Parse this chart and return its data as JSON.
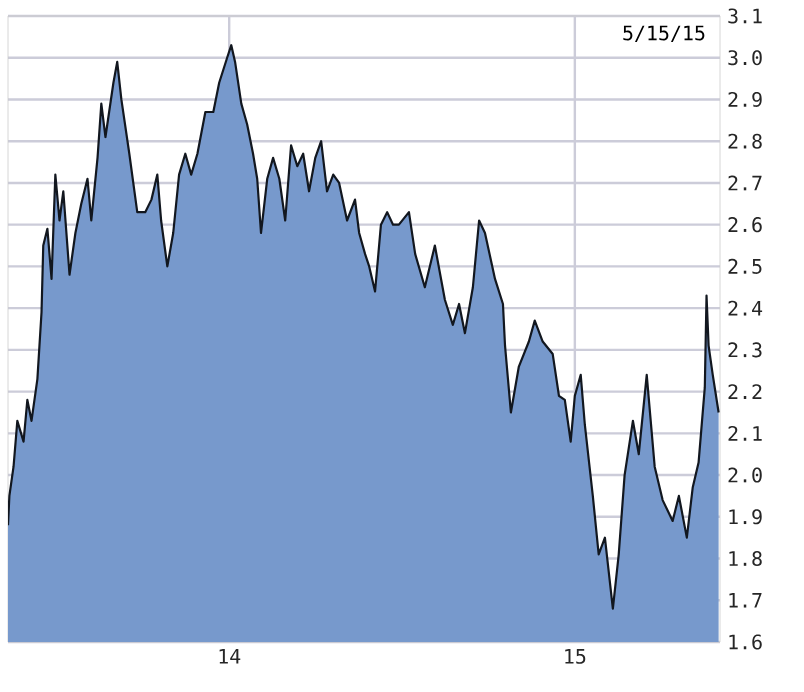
{
  "chart_data": {
    "type": "area",
    "annotations": [
      "5/15/15"
    ],
    "xlim": [
      2013.36,
      2015.42
    ],
    "xticks": [
      {
        "value": 2014,
        "label": "14"
      },
      {
        "value": 2015,
        "label": "15"
      }
    ],
    "ylim": [
      1.6,
      3.1
    ],
    "yticks": [
      1.6,
      1.7,
      1.8,
      1.9,
      {
        "value": 2.0,
        "label": "2.0"
      },
      2.1,
      2.2,
      2.3,
      2.4,
      2.5,
      2.6,
      2.7,
      2.8,
      2.9,
      {
        "value": 3.0,
        "label": "3.0"
      },
      3.1
    ],
    "grid": true,
    "series": [
      {
        "color": "#7799cc",
        "x": [
          2013.36,
          2013.364,
          2013.376,
          2013.387,
          2013.405,
          2013.416,
          2013.428,
          2013.445,
          2013.457,
          2013.462,
          2013.474,
          2013.486,
          2013.497,
          2013.509,
          2013.52,
          2013.538,
          2013.555,
          2013.572,
          2013.59,
          2013.601,
          2013.619,
          2013.63,
          2013.642,
          2013.665,
          2013.676,
          2013.688,
          2013.711,
          2013.734,
          2013.757,
          2013.775,
          2013.792,
          2013.803,
          2013.821,
          2013.838,
          2013.855,
          2013.873,
          2013.89,
          2013.908,
          2013.931,
          2013.954,
          2013.971,
          2013.994,
          2014.006,
          2014.017,
          2014.035,
          2014.052,
          2014.069,
          2014.081,
          2014.092,
          2014.11,
          2014.127,
          2014.145,
          2014.162,
          2014.179,
          2014.197,
          2014.214,
          2014.231,
          2014.249,
          2014.266,
          2014.283,
          2014.301,
          2014.318,
          2014.341,
          2014.364,
          2014.376,
          2014.393,
          2014.405,
          2014.422,
          2014.439,
          2014.457,
          2014.474,
          2014.491,
          2014.52,
          2014.538,
          2014.566,
          2014.595,
          2014.624,
          2014.647,
          2014.665,
          2014.682,
          2014.705,
          2014.723,
          2014.74,
          2014.769,
          2014.792,
          2014.798,
          2014.815,
          2014.838,
          2014.867,
          2014.884,
          2014.907,
          2014.936,
          2014.954,
          2014.971,
          2014.988,
          2015.0,
          2015.017,
          2015.029,
          2015.052,
          2015.069,
          2015.087,
          2015.11,
          2015.127,
          2015.144,
          2015.168,
          2015.185,
          2015.208,
          2015.231,
          2015.254,
          2015.283,
          2015.301,
          2015.324,
          2015.341,
          2015.358,
          2015.376,
          2015.381,
          2015.387,
          2015.399,
          2015.416
        ],
        "values": [
          1.88,
          1.95,
          2.02,
          2.13,
          2.08,
          2.18,
          2.13,
          2.23,
          2.39,
          2.55,
          2.59,
          2.47,
          2.72,
          2.61,
          2.68,
          2.48,
          2.58,
          2.65,
          2.71,
          2.61,
          2.76,
          2.89,
          2.81,
          2.94,
          2.99,
          2.9,
          2.77,
          2.63,
          2.63,
          2.66,
          2.72,
          2.61,
          2.5,
          2.58,
          2.72,
          2.77,
          2.72,
          2.77,
          2.87,
          2.87,
          2.94,
          3.0,
          3.03,
          2.99,
          2.89,
          2.84,
          2.77,
          2.71,
          2.58,
          2.71,
          2.76,
          2.71,
          2.61,
          2.79,
          2.74,
          2.77,
          2.68,
          2.76,
          2.8,
          2.68,
          2.72,
          2.7,
          2.61,
          2.66,
          2.58,
          2.53,
          2.5,
          2.44,
          2.6,
          2.63,
          2.6,
          2.6,
          2.63,
          2.53,
          2.45,
          2.55,
          2.42,
          2.36,
          2.41,
          2.34,
          2.45,
          2.61,
          2.58,
          2.47,
          2.41,
          2.31,
          2.15,
          2.26,
          2.32,
          2.37,
          2.32,
          2.29,
          2.19,
          2.18,
          2.08,
          2.19,
          2.24,
          2.12,
          1.95,
          1.81,
          1.85,
          1.68,
          1.81,
          2.0,
          2.13,
          2.05,
          2.24,
          2.02,
          1.94,
          1.89,
          1.95,
          1.85,
          1.97,
          2.03,
          2.21,
          2.43,
          2.31,
          2.24,
          2.15
        ]
      }
    ]
  }
}
